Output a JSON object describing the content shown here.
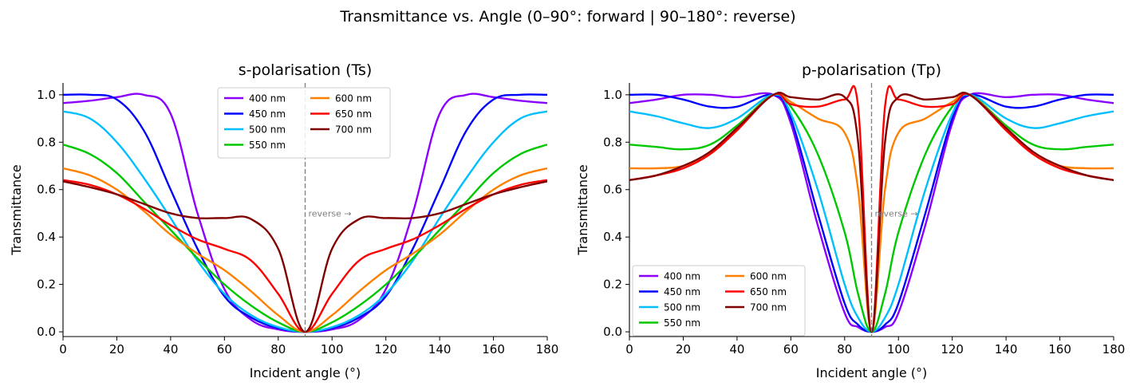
{
  "suptitle": "Transmittance vs. Angle  (0–90°: forward | 90–180°: reverse)",
  "colors": {
    "400 nm": "#8b00ff",
    "450 nm": "#0000ff",
    "500 nm": "#00bfff",
    "550 nm": "#00c800",
    "600 nm": "#ff8000",
    "650 nm": "#ff0000",
    "700 nm": "#800000",
    "divider": "#808080",
    "divider_label": "#808080"
  },
  "chart_data": [
    {
      "type": "line",
      "title": "s-polarisation (Ts)",
      "xlabel": "Incident angle (°)",
      "ylabel": "Transmittance",
      "xlim": [
        0,
        180
      ],
      "ylim": [
        -0.02,
        1.05
      ],
      "xticks": [
        0,
        20,
        40,
        60,
        80,
        100,
        120,
        140,
        160,
        180
      ],
      "yticks": [
        0.0,
        0.2,
        0.4,
        0.6,
        0.8,
        1.0
      ],
      "grid": false,
      "legend": "top-center",
      "legend_ncol": 2,
      "divider_x": 90,
      "divider_label": "reverse →",
      "x": [
        0,
        10,
        20,
        30,
        40,
        50,
        60,
        70,
        80,
        90,
        100,
        110,
        120,
        130,
        140,
        150,
        160,
        170,
        180
      ],
      "series": [
        {
          "name": "400 nm",
          "values": [
            0.965,
            0.975,
            0.99,
            1.0,
            0.92,
            0.5,
            0.18,
            0.05,
            0.01,
            0.0,
            0.01,
            0.05,
            0.18,
            0.5,
            0.92,
            1.0,
            0.99,
            0.975,
            0.965
          ]
        },
        {
          "name": "450 nm",
          "values": [
            1.0,
            1.0,
            0.98,
            0.85,
            0.6,
            0.35,
            0.15,
            0.06,
            0.015,
            0.0,
            0.015,
            0.06,
            0.15,
            0.35,
            0.6,
            0.85,
            0.98,
            1.0,
            1.0
          ]
        },
        {
          "name": "500 nm",
          "values": [
            0.93,
            0.9,
            0.8,
            0.65,
            0.48,
            0.3,
            0.16,
            0.07,
            0.02,
            0.0,
            0.02,
            0.07,
            0.16,
            0.3,
            0.48,
            0.65,
            0.8,
            0.9,
            0.93
          ]
        },
        {
          "name": "550 nm",
          "values": [
            0.79,
            0.75,
            0.67,
            0.55,
            0.43,
            0.31,
            0.2,
            0.11,
            0.04,
            0.0,
            0.04,
            0.11,
            0.2,
            0.31,
            0.43,
            0.55,
            0.67,
            0.75,
            0.79
          ]
        },
        {
          "name": "600 nm",
          "values": [
            0.69,
            0.66,
            0.6,
            0.51,
            0.41,
            0.33,
            0.26,
            0.17,
            0.07,
            0.0,
            0.07,
            0.17,
            0.26,
            0.33,
            0.41,
            0.51,
            0.6,
            0.66,
            0.69
          ]
        },
        {
          "name": "650 nm",
          "values": [
            0.64,
            0.62,
            0.58,
            0.52,
            0.45,
            0.39,
            0.35,
            0.3,
            0.16,
            0.0,
            0.16,
            0.3,
            0.35,
            0.39,
            0.45,
            0.52,
            0.58,
            0.62,
            0.64
          ]
        },
        {
          "name": "700 nm",
          "values": [
            0.635,
            0.61,
            0.58,
            0.54,
            0.5,
            0.48,
            0.48,
            0.475,
            0.35,
            0.0,
            0.35,
            0.475,
            0.48,
            0.48,
            0.5,
            0.54,
            0.58,
            0.61,
            0.635
          ]
        }
      ]
    },
    {
      "type": "line",
      "title": "p-polarisation (Tp)",
      "xlabel": "Incident angle (°)",
      "ylabel": "Transmittance",
      "xlim": [
        0,
        180
      ],
      "ylim": [
        -0.02,
        1.05
      ],
      "xticks": [
        0,
        20,
        40,
        60,
        80,
        100,
        120,
        140,
        160,
        180
      ],
      "yticks": [
        0.0,
        0.2,
        0.4,
        0.6,
        0.8,
        1.0
      ],
      "grid": false,
      "legend": "lower-left",
      "legend_ncol": 2,
      "divider_x": 90,
      "divider_label": "reverse →",
      "x": [
        0,
        10,
        20,
        30,
        40,
        53.5,
        60,
        70,
        80,
        85,
        90,
        95,
        100,
        110,
        120,
        126.5,
        140,
        150,
        160,
        170,
        180
      ],
      "series": [
        {
          "name": "400 nm",
          "values": [
            0.965,
            0.98,
            1.0,
            1.0,
            0.99,
            1.0,
            0.88,
            0.45,
            0.08,
            0.02,
            0.0,
            0.02,
            0.08,
            0.45,
            0.88,
            1.0,
            0.99,
            1.0,
            1.0,
            0.98,
            0.965
          ]
        },
        {
          "name": "450 nm",
          "values": [
            1.0,
            1.0,
            0.98,
            0.95,
            0.95,
            1.0,
            0.9,
            0.5,
            0.12,
            0.03,
            0.0,
            0.03,
            0.12,
            0.5,
            0.9,
            1.0,
            0.95,
            0.95,
            0.98,
            1.0,
            1.0
          ]
        },
        {
          "name": "500 nm",
          "values": [
            0.93,
            0.91,
            0.88,
            0.86,
            0.9,
            1.0,
            0.92,
            0.6,
            0.2,
            0.06,
            0.0,
            0.06,
            0.2,
            0.6,
            0.92,
            1.0,
            0.9,
            0.86,
            0.88,
            0.91,
            0.93
          ]
        },
        {
          "name": "550 nm",
          "values": [
            0.79,
            0.78,
            0.77,
            0.79,
            0.87,
            1.0,
            0.95,
            0.75,
            0.42,
            0.16,
            0.0,
            0.16,
            0.42,
            0.75,
            0.95,
            1.0,
            0.87,
            0.79,
            0.77,
            0.78,
            0.79
          ]
        },
        {
          "name": "600 nm",
          "values": [
            0.69,
            0.69,
            0.7,
            0.75,
            0.86,
            1.0,
            0.97,
            0.9,
            0.84,
            0.6,
            0.0,
            0.6,
            0.84,
            0.9,
            0.97,
            1.0,
            0.86,
            0.75,
            0.7,
            0.69,
            0.69
          ]
        },
        {
          "name": "650 nm",
          "values": [
            0.64,
            0.66,
            0.69,
            0.75,
            0.85,
            1.0,
            0.96,
            0.95,
            0.98,
            0.95,
            0.0,
            0.95,
            0.98,
            0.95,
            0.96,
            1.0,
            0.85,
            0.75,
            0.69,
            0.66,
            0.64
          ]
        },
        {
          "name": "700 nm",
          "values": [
            0.64,
            0.66,
            0.7,
            0.76,
            0.86,
            1.0,
            0.99,
            0.98,
            0.99,
            0.8,
            0.0,
            0.8,
            0.99,
            0.98,
            0.99,
            1.0,
            0.86,
            0.76,
            0.7,
            0.66,
            0.64
          ]
        }
      ]
    }
  ]
}
